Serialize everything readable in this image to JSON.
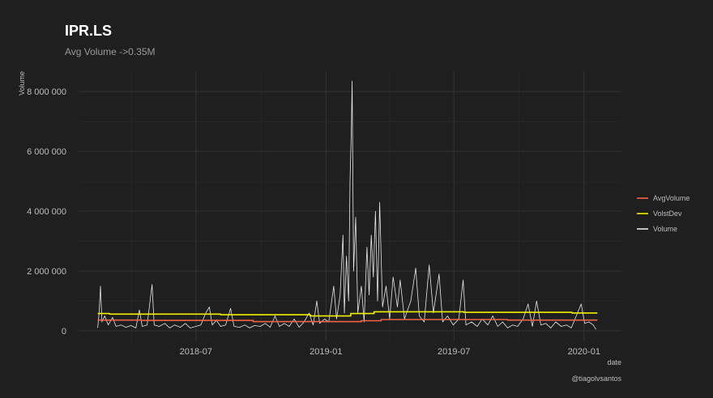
{
  "chart_data": {
    "type": "line",
    "title": "IPR.LS",
    "subtitle": "Avg Volume ->0.35M",
    "xlabel": "date",
    "ylabel": "Volume",
    "caption": "@tiagolvsantos",
    "xlim": [
      "2018-01-16",
      "2020-02-23"
    ],
    "ylim": [
      -350000,
      8680000
    ],
    "x_ticks": [
      {
        "date": "2018-07-01",
        "label": "2018-07"
      },
      {
        "date": "2019-01-01",
        "label": "2019-01"
      },
      {
        "date": "2019-07-01",
        "label": "2019-07"
      },
      {
        "date": "2020-01-01",
        "label": "2020-01"
      }
    ],
    "x_minor_ticks": [
      "2018-04-01",
      "2018-10-01",
      "2019-04-01",
      "2019-10-01"
    ],
    "y_ticks": [
      {
        "value": 0,
        "label": "0"
      },
      {
        "value": 2000000,
        "label": "2 000 000"
      },
      {
        "value": 4000000,
        "label": "4 000 000"
      },
      {
        "value": 6000000,
        "label": "6 000 000"
      },
      {
        "value": 8000000,
        "label": "8 000 000"
      }
    ],
    "y_minor_ticks": [
      1000000,
      3000000,
      5000000,
      7000000
    ],
    "grid": true,
    "legend_placement": "right",
    "colors": {
      "background": "#1f1f1f",
      "grid": "#333333",
      "AvgVolume": "#f26445",
      "VolstDev": "#f0f000",
      "Volume": "#e8e8e8"
    },
    "series": [
      {
        "name": "AvgVolume",
        "step": true,
        "points": [
          [
            "2018-02-12",
            360000
          ],
          [
            "2018-04-15",
            350000
          ],
          [
            "2018-09-20",
            310000
          ],
          [
            "2019-02-20",
            340000
          ],
          [
            "2019-03-20",
            380000
          ],
          [
            "2019-09-15",
            360000
          ],
          [
            "2020-01-20",
            360000
          ]
        ]
      },
      {
        "name": "VolstDev",
        "step": true,
        "points": [
          [
            "2018-02-12",
            580000
          ],
          [
            "2018-03-01",
            560000
          ],
          [
            "2018-08-05",
            540000
          ],
          [
            "2018-12-10",
            500000
          ],
          [
            "2019-02-05",
            580000
          ],
          [
            "2019-03-10",
            640000
          ],
          [
            "2019-07-15",
            620000
          ],
          [
            "2019-12-15",
            600000
          ],
          [
            "2020-01-20",
            600000
          ]
        ]
      },
      {
        "name": "Volume",
        "step": false,
        "points": [
          [
            "2018-02-12",
            100000
          ],
          [
            "2018-02-14",
            600000
          ],
          [
            "2018-02-16",
            1500000
          ],
          [
            "2018-02-18",
            300000
          ],
          [
            "2018-02-22",
            500000
          ],
          [
            "2018-02-27",
            200000
          ],
          [
            "2018-03-05",
            450000
          ],
          [
            "2018-03-10",
            150000
          ],
          [
            "2018-03-17",
            200000
          ],
          [
            "2018-03-24",
            120000
          ],
          [
            "2018-03-31",
            180000
          ],
          [
            "2018-04-07",
            100000
          ],
          [
            "2018-04-12",
            700000
          ],
          [
            "2018-04-16",
            150000
          ],
          [
            "2018-04-23",
            200000
          ],
          [
            "2018-04-30",
            1550000
          ],
          [
            "2018-05-03",
            200000
          ],
          [
            "2018-05-10",
            150000
          ],
          [
            "2018-05-18",
            250000
          ],
          [
            "2018-05-25",
            100000
          ],
          [
            "2018-06-01",
            200000
          ],
          [
            "2018-06-09",
            120000
          ],
          [
            "2018-06-16",
            250000
          ],
          [
            "2018-06-23",
            100000
          ],
          [
            "2018-07-01",
            150000
          ],
          [
            "2018-07-08",
            200000
          ],
          [
            "2018-07-15",
            600000
          ],
          [
            "2018-07-20",
            800000
          ],
          [
            "2018-07-24",
            200000
          ],
          [
            "2018-07-30",
            350000
          ],
          [
            "2018-08-05",
            150000
          ],
          [
            "2018-08-12",
            200000
          ],
          [
            "2018-08-19",
            750000
          ],
          [
            "2018-08-24",
            150000
          ],
          [
            "2018-09-01",
            120000
          ],
          [
            "2018-09-08",
            200000
          ],
          [
            "2018-09-15",
            100000
          ],
          [
            "2018-09-22",
            180000
          ],
          [
            "2018-09-30",
            150000
          ],
          [
            "2018-10-07",
            250000
          ],
          [
            "2018-10-14",
            120000
          ],
          [
            "2018-10-21",
            500000
          ],
          [
            "2018-10-27",
            150000
          ],
          [
            "2018-11-03",
            250000
          ],
          [
            "2018-11-10",
            150000
          ],
          [
            "2018-11-17",
            400000
          ],
          [
            "2018-11-24",
            120000
          ],
          [
            "2018-12-01",
            300000
          ],
          [
            "2018-12-08",
            600000
          ],
          [
            "2018-12-14",
            200000
          ],
          [
            "2018-12-19",
            1000000
          ],
          [
            "2018-12-23",
            250000
          ],
          [
            "2018-12-30",
            400000
          ],
          [
            "2019-01-05",
            300000
          ],
          [
            "2019-01-12",
            1500000
          ],
          [
            "2019-01-16",
            400000
          ],
          [
            "2019-01-21",
            1200000
          ],
          [
            "2019-01-25",
            3200000
          ],
          [
            "2019-01-27",
            600000
          ],
          [
            "2019-01-30",
            2500000
          ],
          [
            "2019-02-02",
            1000000
          ],
          [
            "2019-02-04",
            5000000
          ],
          [
            "2019-02-06",
            6800000
          ],
          [
            "2019-02-07",
            8350000
          ],
          [
            "2019-02-09",
            2000000
          ],
          [
            "2019-02-12",
            3800000
          ],
          [
            "2019-02-15",
            600000
          ],
          [
            "2019-02-20",
            1500000
          ],
          [
            "2019-02-24",
            300000
          ],
          [
            "2019-02-28",
            2800000
          ],
          [
            "2019-03-03",
            1200000
          ],
          [
            "2019-03-06",
            3200000
          ],
          [
            "2019-03-09",
            1800000
          ],
          [
            "2019-03-12",
            4000000
          ],
          [
            "2019-03-15",
            1000000
          ],
          [
            "2019-03-18",
            4300000
          ],
          [
            "2019-03-22",
            800000
          ],
          [
            "2019-03-27",
            1500000
          ],
          [
            "2019-04-01",
            400000
          ],
          [
            "2019-04-06",
            1800000
          ],
          [
            "2019-04-12",
            800000
          ],
          [
            "2019-04-16",
            1700000
          ],
          [
            "2019-04-22",
            400000
          ],
          [
            "2019-05-01",
            1000000
          ],
          [
            "2019-05-08",
            2100000
          ],
          [
            "2019-05-13",
            500000
          ],
          [
            "2019-05-20",
            300000
          ],
          [
            "2019-05-27",
            2200000
          ],
          [
            "2019-06-02",
            600000
          ],
          [
            "2019-06-10",
            1900000
          ],
          [
            "2019-06-15",
            300000
          ],
          [
            "2019-06-22",
            500000
          ],
          [
            "2019-06-30",
            200000
          ],
          [
            "2019-07-08",
            400000
          ],
          [
            "2019-07-14",
            1700000
          ],
          [
            "2019-07-18",
            200000
          ],
          [
            "2019-07-26",
            300000
          ],
          [
            "2019-08-03",
            150000
          ],
          [
            "2019-08-10",
            400000
          ],
          [
            "2019-08-18",
            200000
          ],
          [
            "2019-08-25",
            500000
          ],
          [
            "2019-09-01",
            150000
          ],
          [
            "2019-09-08",
            300000
          ],
          [
            "2019-09-15",
            100000
          ],
          [
            "2019-09-22",
            200000
          ],
          [
            "2019-09-29",
            150000
          ],
          [
            "2019-10-07",
            400000
          ],
          [
            "2019-10-14",
            900000
          ],
          [
            "2019-10-20",
            150000
          ],
          [
            "2019-10-26",
            1000000
          ],
          [
            "2019-11-01",
            200000
          ],
          [
            "2019-11-08",
            250000
          ],
          [
            "2019-11-15",
            100000
          ],
          [
            "2019-11-22",
            300000
          ],
          [
            "2019-11-30",
            150000
          ],
          [
            "2019-12-07",
            200000
          ],
          [
            "2019-12-14",
            100000
          ],
          [
            "2019-12-21",
            500000
          ],
          [
            "2019-12-28",
            900000
          ],
          [
            "2020-01-02",
            250000
          ],
          [
            "2020-01-08",
            300000
          ],
          [
            "2020-01-14",
            200000
          ],
          [
            "2020-01-18",
            50000
          ]
        ]
      }
    ]
  }
}
